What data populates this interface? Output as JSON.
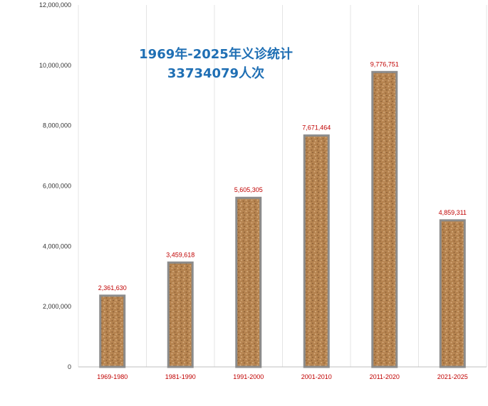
{
  "chart_data": {
    "type": "bar",
    "title_lines": [
      "1969年-2025年义诊统计",
      "33734079人次"
    ],
    "xlabel": "",
    "ylabel": "",
    "categories": [
      "1969-1980",
      "1981-1990",
      "1991-2000",
      "2001-2010",
      "2011-2020",
      "2021-2025"
    ],
    "values": [
      2361630,
      3459618,
      5605305,
      7671464,
      9776751,
      4859311
    ],
    "data_labels": [
      "2,361,630",
      "3,459,618",
      "5,605,305",
      "7,671,464",
      "9,776,751",
      "4,859,311"
    ],
    "ylim": [
      0,
      12000000
    ],
    "y_ticks": [
      0,
      2000000,
      4000000,
      6000000,
      8000000,
      10000000,
      12000000
    ],
    "y_tick_labels": [
      "0",
      "2,000,000",
      "4,000,000",
      "6,000,000",
      "8,000,000",
      "10,000,000",
      "12,000,000"
    ],
    "grid": "vertical",
    "legend": "none",
    "colors": {
      "bar_fill": "#b5834f",
      "bar_border": "#8c8c8c",
      "label": "#c00000",
      "title": "#1f6fb4",
      "grid": "#e4e4e4",
      "axis": "#bfbfbf"
    }
  }
}
